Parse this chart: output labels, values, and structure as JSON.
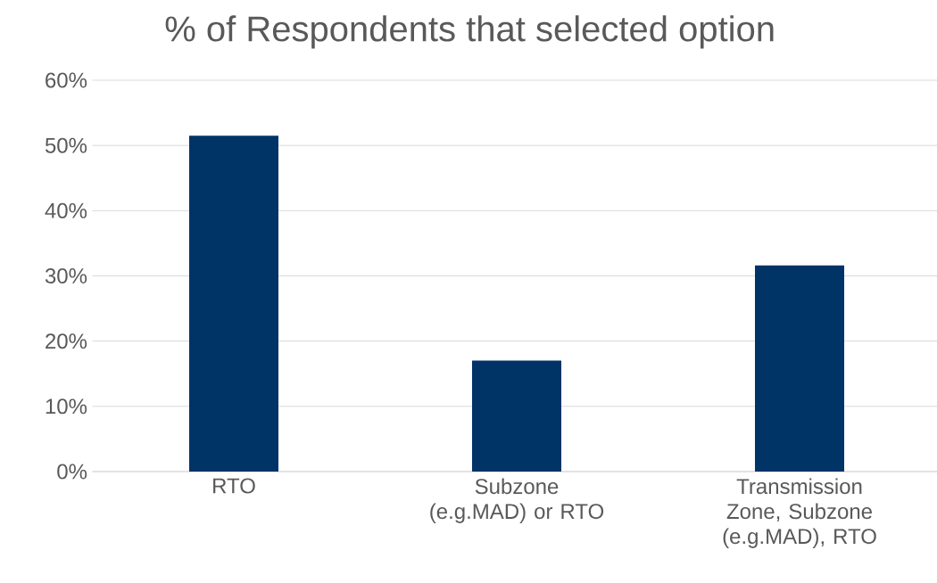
{
  "chart_data": {
    "type": "bar",
    "title": "% of Respondents that selected option",
    "categories": [
      "RTO",
      "Subzone (e.g.MAD) or RTO",
      "Transmission Zone, Subzone (e.g.MAD), RTO"
    ],
    "values": [
      51.5,
      17,
      31.6
    ],
    "color": "#003366",
    "ylim": [
      0,
      60
    ],
    "yticks": [
      {
        "value": 0,
        "label": "0%"
      },
      {
        "value": 10,
        "label": "10%"
      },
      {
        "value": 20,
        "label": "20%"
      },
      {
        "value": 30,
        "label": "30%"
      },
      {
        "value": 40,
        "label": "40%"
      },
      {
        "value": 50,
        "label": "50%"
      },
      {
        "value": 60,
        "label": "60%"
      }
    ],
    "grid": "y"
  }
}
